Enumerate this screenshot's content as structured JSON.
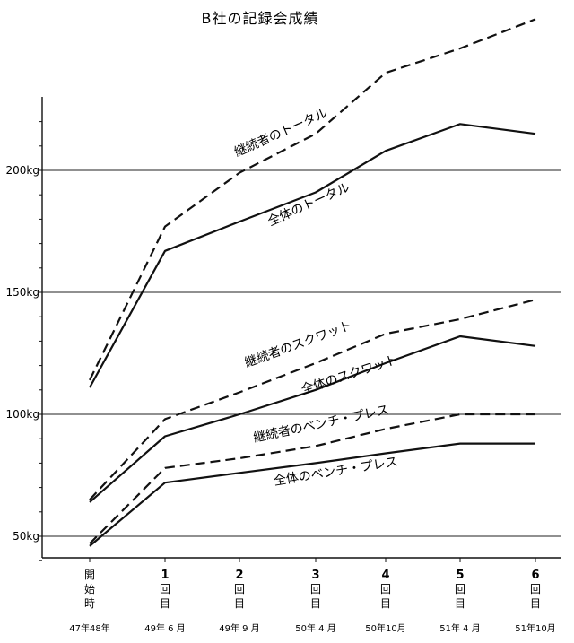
{
  "chart_data": {
    "type": "line",
    "title": "B社の記録会成績",
    "yunit": "kg",
    "ylim": [
      30,
      225
    ],
    "yticks": [
      {
        "value": 50,
        "label": "50kg"
      },
      {
        "value": 100,
        "label": "100kg"
      },
      {
        "value": 150,
        "label": "150kg"
      },
      {
        "value": 200,
        "label": "200kg"
      }
    ],
    "categories": [
      {
        "lines": [
          "開",
          "始",
          "時"
        ],
        "date": "47年48年"
      },
      {
        "lines": [
          "1",
          "回",
          "目"
        ],
        "date": "49年 6 月"
      },
      {
        "lines": [
          "2",
          "回",
          "目"
        ],
        "date": "49年 9 月"
      },
      {
        "lines": [
          "3",
          "回",
          "目"
        ],
        "date": "50年 4 月"
      },
      {
        "lines": [
          "4",
          "回",
          "目"
        ],
        "date": "50年10月"
      },
      {
        "lines": [
          "5",
          "回",
          "目"
        ],
        "date": "51年 4 月"
      },
      {
        "lines": [
          "6",
          "回",
          "目"
        ],
        "date": "51年10月"
      }
    ],
    "series": [
      {
        "name": "継続者のトータル",
        "style": "dashed",
        "values": [
          114,
          177,
          199,
          215,
          240,
          250,
          262
        ]
      },
      {
        "name": "全体のトータル",
        "style": "solid",
        "values": [
          111,
          167,
          179,
          191,
          208,
          219,
          215
        ]
      },
      {
        "name": "継続者のスクワット",
        "style": "dashed",
        "values": [
          65,
          98,
          109,
          121,
          133,
          139,
          147
        ]
      },
      {
        "name": "全体のスクワット",
        "style": "solid",
        "values": [
          64,
          91,
          100,
          110,
          121,
          132,
          128
        ]
      },
      {
        "name": "継続者のベンチ・プレス",
        "style": "dashed",
        "values": [
          47,
          78,
          82,
          87,
          94,
          100,
          100
        ]
      },
      {
        "name": "全体のベンチ・プレス",
        "style": "solid",
        "values": [
          46,
          72,
          76,
          80,
          84,
          88,
          88
        ]
      }
    ],
    "grid": true,
    "legend": "inline labels"
  }
}
